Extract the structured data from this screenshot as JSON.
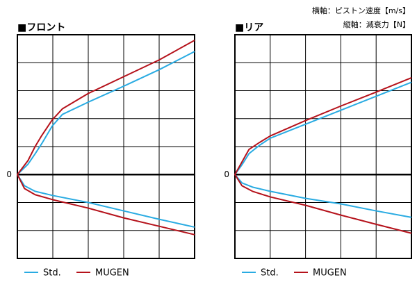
{
  "annotations": [
    "横軸：ピストン速度【m/s】",
    "縦軸：減衰力【N】"
  ],
  "chart_data": [
    {
      "type": "line",
      "title": "■フロント",
      "xlim": [
        0,
        5
      ],
      "ylim": [
        -3,
        5
      ],
      "yticks": [
        0
      ],
      "xgrid": [
        0,
        1,
        2,
        3,
        4,
        5
      ],
      "ygrid": [
        -3,
        -2,
        -1,
        1,
        2,
        3,
        4,
        5
      ],
      "legend": "bottom",
      "series": [
        {
          "name": "Std.",
          "color": "#29abe2",
          "x": [
            5,
            4,
            3,
            2,
            1,
            0.5,
            0.2,
            0,
            0.3,
            0.5,
            0.69,
            0.98,
            1.27,
            2,
            3,
            4,
            5
          ],
          "values": [
            -1.88,
            -1.6,
            -1.3,
            -1.0,
            -0.75,
            -0.6,
            -0.4,
            0,
            0.37,
            0.74,
            1.11,
            1.73,
            2.15,
            2.59,
            3.16,
            3.75,
            4.4
          ]
        },
        {
          "name": "MUGEN",
          "color": "#b5121b",
          "x": [
            5,
            4,
            3,
            2,
            1,
            0.5,
            0.2,
            0,
            0.3,
            0.5,
            0.69,
            0.98,
            1.27,
            2,
            3,
            4,
            5
          ],
          "values": [
            -2.15,
            -1.85,
            -1.55,
            -1.2,
            -0.9,
            -0.72,
            -0.5,
            0,
            0.5,
            1.0,
            1.4,
            1.95,
            2.35,
            2.9,
            3.5,
            4.1,
            4.8
          ]
        }
      ]
    },
    {
      "type": "line",
      "title": "■リア",
      "xlim": [
        0,
        5
      ],
      "ylim": [
        -3,
        5
      ],
      "yticks": [
        0
      ],
      "xgrid": [
        0,
        1,
        2,
        3,
        4,
        5
      ],
      "ygrid": [
        -3,
        -2,
        -1,
        1,
        2,
        3,
        4,
        5
      ],
      "legend": "bottom",
      "series": [
        {
          "name": "Std.",
          "color": "#29abe2",
          "x": [
            5,
            4,
            3,
            2,
            1,
            0.5,
            0.2,
            0,
            0.2,
            0.4,
            0.7,
            1,
            2,
            3,
            4,
            5
          ],
          "values": [
            -1.53,
            -1.3,
            -1.05,
            -0.85,
            -0.6,
            -0.45,
            -0.3,
            0,
            0.35,
            0.75,
            1.05,
            1.3,
            1.8,
            2.3,
            2.8,
            3.3
          ]
        },
        {
          "name": "MUGEN",
          "color": "#b5121b",
          "x": [
            5,
            4,
            3,
            2,
            1,
            0.5,
            0.2,
            0,
            0.2,
            0.4,
            0.7,
            1,
            2,
            3,
            4,
            5
          ],
          "values": [
            -2.1,
            -1.78,
            -1.45,
            -1.1,
            -0.8,
            -0.6,
            -0.4,
            0,
            0.45,
            0.9,
            1.15,
            1.38,
            1.93,
            2.45,
            2.95,
            3.46
          ]
        }
      ]
    }
  ]
}
